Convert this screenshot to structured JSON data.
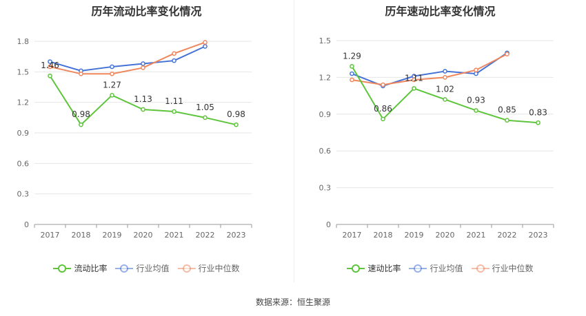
{
  "source": "数据来源：恒生聚源",
  "chart_data": [
    {
      "type": "line",
      "title": "历年流动比率变化情况",
      "categories": [
        "2017",
        "2018",
        "2019",
        "2020",
        "2021",
        "2022",
        "2023"
      ],
      "ylim": [
        0,
        1.8
      ],
      "yticks": [
        "0",
        "0.3",
        "0.6",
        "0.9",
        "1.2",
        "1.5",
        "1.8"
      ],
      "series": [
        {
          "name": "流动比率",
          "color": "#5dc53a",
          "labels": true,
          "values": [
            1.46,
            0.98,
            1.27,
            1.13,
            1.11,
            1.05,
            0.98
          ]
        },
        {
          "name": "行业均值",
          "color": "#4472d6",
          "labels": false,
          "values": [
            1.6,
            1.51,
            1.55,
            1.58,
            1.61,
            1.75,
            null
          ]
        },
        {
          "name": "行业中位数",
          "color": "#f0865c",
          "labels": false,
          "values": [
            1.55,
            1.48,
            1.48,
            1.54,
            1.68,
            1.79,
            null
          ]
        }
      ]
    },
    {
      "type": "line",
      "title": "历年速动比率变化情况",
      "categories": [
        "2017",
        "2018",
        "2019",
        "2020",
        "2021",
        "2022",
        "2023"
      ],
      "ylim": [
        0,
        1.5
      ],
      "yticks": [
        "0",
        "0.3",
        "0.6",
        "0.9",
        "1.2",
        "1.5"
      ],
      "series": [
        {
          "name": "速动比率",
          "color": "#5dc53a",
          "labels": true,
          "values": [
            1.29,
            0.86,
            1.11,
            1.02,
            0.93,
            0.85,
            0.83
          ]
        },
        {
          "name": "行业均值",
          "color": "#4472d6",
          "labels": false,
          "values": [
            1.23,
            1.13,
            1.21,
            1.25,
            1.23,
            1.4,
            null
          ]
        },
        {
          "name": "行业中位数",
          "color": "#f0865c",
          "labels": false,
          "values": [
            1.18,
            1.14,
            1.18,
            1.2,
            1.26,
            1.39,
            null
          ]
        }
      ]
    }
  ]
}
